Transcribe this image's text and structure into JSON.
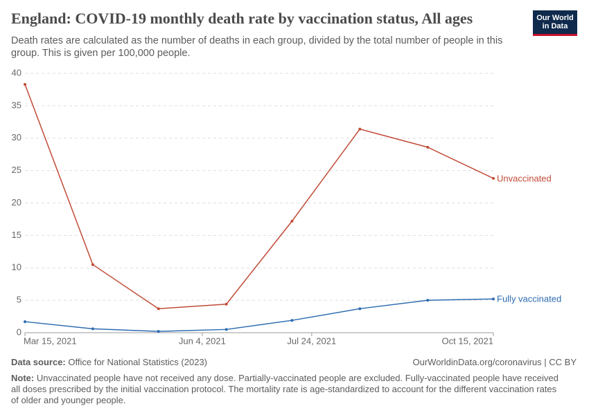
{
  "chart_data": {
    "type": "line",
    "title": "England: COVID-19 monthly death rate by vaccination status, All ages",
    "subtitle": "Death rates are calculated as the number of deaths in each group, divided by the total number of people in this group. This is given per 100,000 people.",
    "x": [
      "2021-03-15",
      "2021-04-15",
      "2021-05-15",
      "2021-06-15",
      "2021-07-15",
      "2021-08-15",
      "2021-09-15",
      "2021-10-15"
    ],
    "series": [
      {
        "name": "Unvaccinated",
        "color": "#c14b37",
        "values": [
          38.3,
          10.5,
          3.7,
          4.4,
          17.2,
          31.4,
          28.6,
          23.8
        ]
      },
      {
        "name": "Fully vaccinated",
        "color": "#2c6bb1",
        "values": [
          1.7,
          0.6,
          0.2,
          0.5,
          1.9,
          3.7,
          5.0,
          5.2
        ]
      }
    ],
    "xlim": [
      "2021-03-15",
      "2021-10-15"
    ],
    "xticks": [
      {
        "value": "2021-03-15",
        "label": "Mar 15, 2021"
      },
      {
        "value": "2021-06-04",
        "label": "Jun 4, 2021"
      },
      {
        "value": "2021-07-24",
        "label": "Jul 24, 2021"
      },
      {
        "value": "2021-10-15",
        "label": "Oct 15, 2021"
      }
    ],
    "ylim": [
      0,
      40
    ],
    "yticks": [
      0,
      5,
      10,
      15,
      20,
      25,
      30,
      35,
      40
    ],
    "grid": true
  },
  "logo": [
    "Our World",
    "in Data"
  ],
  "footer": {
    "source_label": "Data source:",
    "source": "Office for National Statistics (2023)",
    "url": "OurWorldinData.org/coronavirus | CC BY",
    "note_label": "Note:",
    "note": "Unvaccinated people have not received any dose. Partially-vaccinated people are excluded. Fully-vaccinated people have received all doses prescribed by the initial vaccination protocol. The mortality rate is age-standardized to account for the different vaccination rates of older and younger people."
  }
}
